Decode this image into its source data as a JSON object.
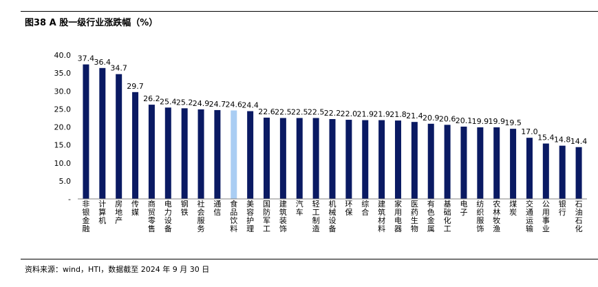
{
  "figure_title": "图38 A 股一级行业涨跌幅（%）",
  "source_note": "资料来源：wind，HTI，数据截至 2024 年 9 月 30 日",
  "colors": {
    "bar": "#0a1a63",
    "highlight": "#a9cdf3",
    "axis": "#808080"
  },
  "chart_data": {
    "type": "bar",
    "title": "",
    "xlabel": "",
    "ylabel": "",
    "ylim": [
      0,
      40
    ],
    "yticks": [
      "-",
      "5.0",
      "10.0",
      "15.0",
      "20.0",
      "25.0",
      "30.0",
      "35.0",
      "40.0"
    ],
    "grid": false,
    "legend": "none",
    "highlight_category": "食品饮料",
    "categories": [
      "非银金融",
      "计算机",
      "房地产",
      "传媒",
      "商贸零售",
      "电力设备",
      "钢铁",
      "社会服务",
      "通信",
      "食品饮料",
      "美容护理",
      "国防军工",
      "建筑装饰",
      "汽车",
      "轻工制造",
      "机械设备",
      "环保",
      "综合",
      "建筑材料",
      "家用电器",
      "医药生物",
      "有色金属",
      "基础化工",
      "电子",
      "纺织服饰",
      "农林牧渔",
      "煤炭",
      "交通运输",
      "公用事业",
      "银行",
      "石油石化"
    ],
    "values": [
      37.4,
      36.4,
      34.7,
      29.7,
      26.2,
      25.4,
      25.2,
      24.9,
      24.7,
      24.6,
      24.4,
      22.6,
      22.5,
      22.5,
      22.5,
      22.2,
      22.0,
      21.9,
      21.9,
      21.8,
      21.4,
      20.9,
      20.6,
      20.1,
      19.9,
      19.9,
      19.5,
      17.0,
      15.4,
      14.8,
      14.4
    ],
    "value_labels": [
      "37.4",
      "36.4",
      "34.7",
      "29.7",
      "26.2",
      "25.4",
      "25.2",
      "24.9",
      "24.7",
      "24.6",
      "24.4",
      "22.6",
      "22.5",
      "22.5",
      "22.5",
      "22.2",
      "22.0",
      "21.9",
      "21.9",
      "21.8",
      "21.4",
      "20.9",
      "20.6",
      "20.1",
      "19.9",
      "19.9",
      "19.5",
      "17.0",
      "15.4",
      "14.8",
      "14.4"
    ]
  }
}
